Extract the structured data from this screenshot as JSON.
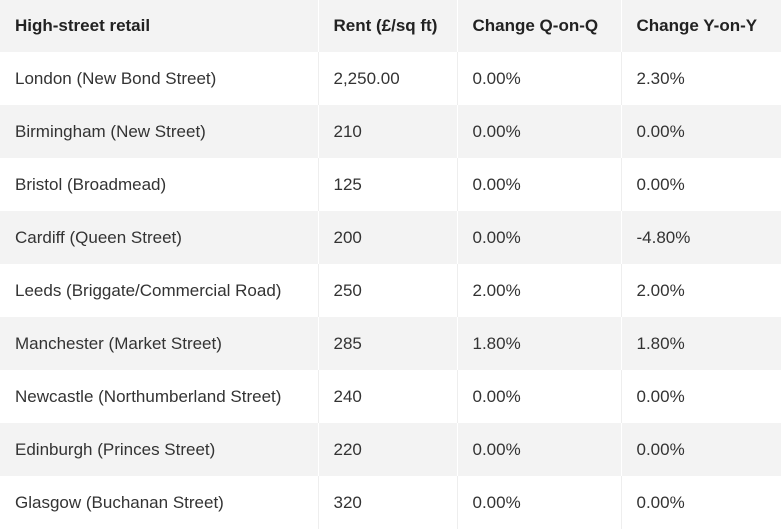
{
  "table": {
    "headers": [
      "High-street retail",
      "Rent (£/sq ft)",
      "Change Q-on-Q",
      "Change Y-on-Y"
    ],
    "rows": [
      [
        "London (New Bond Street)",
        "2,250.00",
        "0.00%",
        "2.30%"
      ],
      [
        "Birmingham (New Street)",
        "210",
        "0.00%",
        "0.00%"
      ],
      [
        "Bristol (Broadmead)",
        "125",
        "0.00%",
        "0.00%"
      ],
      [
        "Cardiff (Queen Street)",
        "200",
        "0.00%",
        "-4.80%"
      ],
      [
        "Leeds (Briggate/Commercial Road)",
        "250",
        "2.00%",
        "2.00%"
      ],
      [
        "Manchester (Market Street)",
        "285",
        "1.80%",
        "1.80%"
      ],
      [
        "Newcastle (Northumberland Street)",
        "240",
        "0.00%",
        "0.00%"
      ],
      [
        "Edinburgh (Princes Street)",
        "220",
        "0.00%",
        "0.00%"
      ],
      [
        "Glasgow (Buchanan Street)",
        "320",
        "0.00%",
        "0.00%"
      ]
    ]
  }
}
